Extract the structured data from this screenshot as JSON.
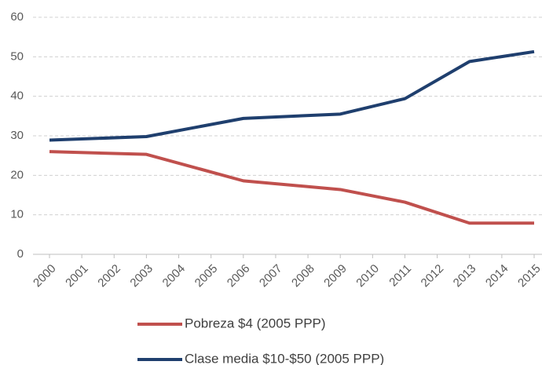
{
  "chart_data": {
    "type": "line",
    "x": [
      2000,
      2003,
      2006,
      2009,
      2011,
      2013,
      2015
    ],
    "xlim": [
      2000,
      2015
    ],
    "xticks": [
      2000,
      2001,
      2002,
      2003,
      2004,
      2005,
      2006,
      2007,
      2008,
      2009,
      2010,
      2011,
      2012,
      2013,
      2014,
      2015
    ],
    "ylim": [
      0,
      60
    ],
    "yticks": [
      0,
      10,
      20,
      30,
      40,
      50,
      60
    ],
    "grid": true,
    "series": [
      {
        "name": "Pobreza $4 (2005 PPP)",
        "color": "#c0504d",
        "values": [
          26,
          25.3,
          18.6,
          16.4,
          13.2,
          7.9,
          7.9
        ]
      },
      {
        "name": "Clase media $10-$50 (2005 PPP)",
        "color": "#1f3f6e",
        "values": [
          28.9,
          29.8,
          34.4,
          35.5,
          39.4,
          48.8,
          51.3
        ]
      }
    ],
    "legend": "bottom"
  }
}
